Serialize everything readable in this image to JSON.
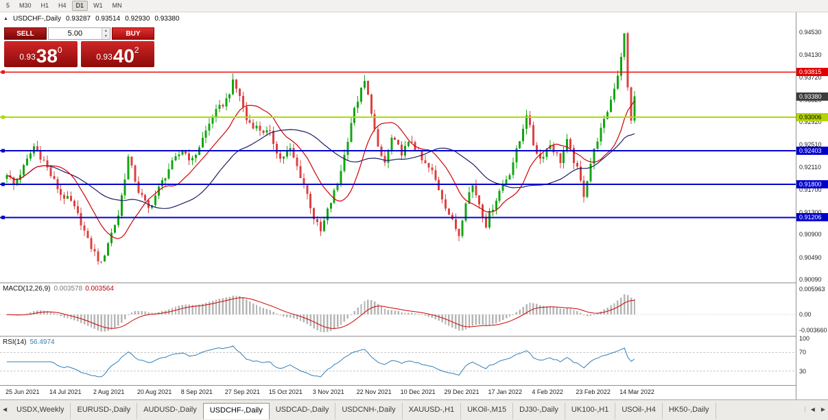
{
  "toolbar": {
    "timeframes": [
      "5",
      "M30",
      "H1",
      "H4",
      "D1",
      "W1",
      "MN"
    ],
    "active": "D1"
  },
  "header": {
    "toggle_icon": "▲",
    "title": "USDCHF-,Daily",
    "open": "0.93287",
    "high": "0.93514",
    "low": "0.92930",
    "close": "0.93380"
  },
  "one_click": {
    "sell_label": "SELL",
    "buy_label": "BUY",
    "volume": "5.00",
    "spinner_up": "▲",
    "spinner_down": "▼",
    "sell_price_prefix": "0.93",
    "sell_price_big": "38",
    "sell_price_sup": "0",
    "buy_price_prefix": "0.93",
    "buy_price_big": "40",
    "buy_price_sup": "2"
  },
  "price_axis": {
    "labels": [
      "0.94530",
      "0.94130",
      "0.93720",
      "0.93320",
      "0.92920",
      "0.92510",
      "0.92110",
      "0.91700",
      "0.91300",
      "0.90900",
      "0.90490",
      "0.90090"
    ],
    "badges": [
      {
        "label": "0.93815",
        "price": 0.93815,
        "bg": "#e00000",
        "fg": "#ffffff"
      },
      {
        "label": "0.93380",
        "price": 0.9338,
        "bg": "#3c3c3c",
        "fg": "#ffffff"
      },
      {
        "label": "0.93006",
        "price": 0.93006,
        "bg": "#b6d400",
        "fg": "#000000"
      },
      {
        "label": "0.92403",
        "price": 0.92403,
        "bg": "#0000cc",
        "fg": "#ffffff"
      },
      {
        "label": "0.91800",
        "price": 0.918,
        "bg": "#0000cc",
        "fg": "#ffffff"
      },
      {
        "label": "0.91206",
        "price": 0.91206,
        "bg": "#0000cc",
        "fg": "#ffffff"
      }
    ]
  },
  "hlines": [
    {
      "price": 0.93815,
      "color": "#ee1111",
      "width": 1.4
    },
    {
      "price": 0.93006,
      "color": "#aadd00",
      "width": 2
    },
    {
      "price": 0.92403,
      "color": "#0000cc",
      "width": 2
    },
    {
      "price": 0.918,
      "color": "#0000cc",
      "width": 2
    },
    {
      "price": 0.91206,
      "color": "#0000cc",
      "width": 2
    }
  ],
  "chart_data": {
    "type": "candlestick",
    "symbol": "USDCHF-",
    "timeframe": "Daily",
    "ohlc_display": {
      "open": 0.93287,
      "high": 0.93514,
      "low": 0.9293,
      "close": 0.9338
    },
    "y_range": {
      "top": 0.94888,
      "bottom": 0.90041
    },
    "count": 187,
    "last_close": 0.9338,
    "candles_per_label": 13,
    "date_labels": [
      "25 Jun 2021",
      "14 Jul 2021",
      "2 Aug 2021",
      "20 Aug 2021",
      "8 Sep 2021",
      "27 Sep 2021",
      "15 Oct 2021",
      "3 Nov 2021",
      "22 Nov 2021",
      "10 Dec 2021",
      "29 Dec 2021",
      "17 Jan 2022",
      "4 Feb 2022",
      "23 Feb 2022",
      "14 Mar 2022"
    ],
    "close_anchors": [
      [
        0,
        0.92
      ],
      [
        2,
        0.9178
      ],
      [
        5,
        0.921
      ],
      [
        8,
        0.9248
      ],
      [
        11,
        0.9222
      ],
      [
        13,
        0.9196
      ],
      [
        16,
        0.9162
      ],
      [
        19,
        0.9148
      ],
      [
        22,
        0.9112
      ],
      [
        24,
        0.9078
      ],
      [
        26,
        0.9056
      ],
      [
        28,
        0.9036
      ],
      [
        30,
        0.9076
      ],
      [
        33,
        0.9125
      ],
      [
        36,
        0.9228
      ],
      [
        39,
        0.9168
      ],
      [
        42,
        0.9136
      ],
      [
        45,
        0.9172
      ],
      [
        48,
        0.9208
      ],
      [
        52,
        0.9242
      ],
      [
        55,
        0.9222
      ],
      [
        58,
        0.9262
      ],
      [
        61,
        0.9302
      ],
      [
        65,
        0.9332
      ],
      [
        67,
        0.9362
      ],
      [
        69,
        0.934
      ],
      [
        71,
        0.9296
      ],
      [
        74,
        0.9282
      ],
      [
        78,
        0.927
      ],
      [
        81,
        0.9226
      ],
      [
        84,
        0.9242
      ],
      [
        87,
        0.9196
      ],
      [
        89,
        0.9162
      ],
      [
        91,
        0.912
      ],
      [
        93,
        0.9094
      ],
      [
        95,
        0.9132
      ],
      [
        98,
        0.9182
      ],
      [
        100,
        0.9232
      ],
      [
        102,
        0.9292
      ],
      [
        104,
        0.9332
      ],
      [
        106,
        0.9364
      ],
      [
        108,
        0.9312
      ],
      [
        110,
        0.9242
      ],
      [
        112,
        0.9218
      ],
      [
        114,
        0.9262
      ],
      [
        117,
        0.9238
      ],
      [
        120,
        0.9258
      ],
      [
        123,
        0.9222
      ],
      [
        126,
        0.9202
      ],
      [
        128,
        0.9172
      ],
      [
        130,
        0.9142
      ],
      [
        132,
        0.9112
      ],
      [
        134,
        0.909
      ],
      [
        136,
        0.9152
      ],
      [
        138,
        0.9178
      ],
      [
        140,
        0.9146
      ],
      [
        142,
        0.9108
      ],
      [
        143,
        0.9126
      ],
      [
        146,
        0.9168
      ],
      [
        149,
        0.9202
      ],
      [
        152,
        0.9258
      ],
      [
        154,
        0.9308
      ],
      [
        156,
        0.9252
      ],
      [
        158,
        0.9226
      ],
      [
        161,
        0.9252
      ],
      [
        164,
        0.9222
      ],
      [
        166,
        0.9256
      ],
      [
        169,
        0.9206
      ],
      [
        171,
        0.9162
      ],
      [
        173,
        0.9218
      ],
      [
        175,
        0.9262
      ],
      [
        177,
        0.9292
      ],
      [
        179,
        0.9332
      ],
      [
        181,
        0.9378
      ],
      [
        182,
        0.9412
      ],
      [
        183,
        0.9448
      ],
      [
        184,
        0.9352
      ],
      [
        185,
        0.9298
      ],
      [
        186,
        0.9338
      ]
    ],
    "colors": {
      "bull": "#11a511",
      "bear": "#dd4040",
      "ma_fast": "#cc0000",
      "ma_slow": "#1b1b66"
    },
    "ma_fast_period": 13,
    "ma_slow_period": 34
  },
  "macd": {
    "name": "MACD(12,26,9)",
    "main_value": "0.003578",
    "signal_value": "0.003564",
    "axis_labels": [
      "0.005963",
      "0.00",
      "-0.003660"
    ],
    "colors": {
      "hist": "#b5b5b5",
      "signal": "#cc0000"
    }
  },
  "rsi": {
    "name": "RSI(14)",
    "value": "56.4974",
    "axis_labels": [
      "100",
      "70",
      "30"
    ],
    "levels": [
      70,
      30
    ],
    "color": "#2e7fb8"
  },
  "tabs": {
    "left_arrow": "◀",
    "right_arrows": [
      "◀",
      "▶"
    ],
    "items": [
      "USDX,Weekly",
      "EURUSD-,Daily",
      "AUDUSD-,Daily",
      "USDCHF-,Daily",
      "USDCAD-,Daily",
      "USDCNH-,Daily",
      "XAUUSD-,H1",
      "UKOil-,M15",
      "DJ30-,Daily",
      "UK100-,H1",
      "USOil-,H4",
      "HK50-,Daily"
    ],
    "active": "USDCHF-,Daily"
  }
}
